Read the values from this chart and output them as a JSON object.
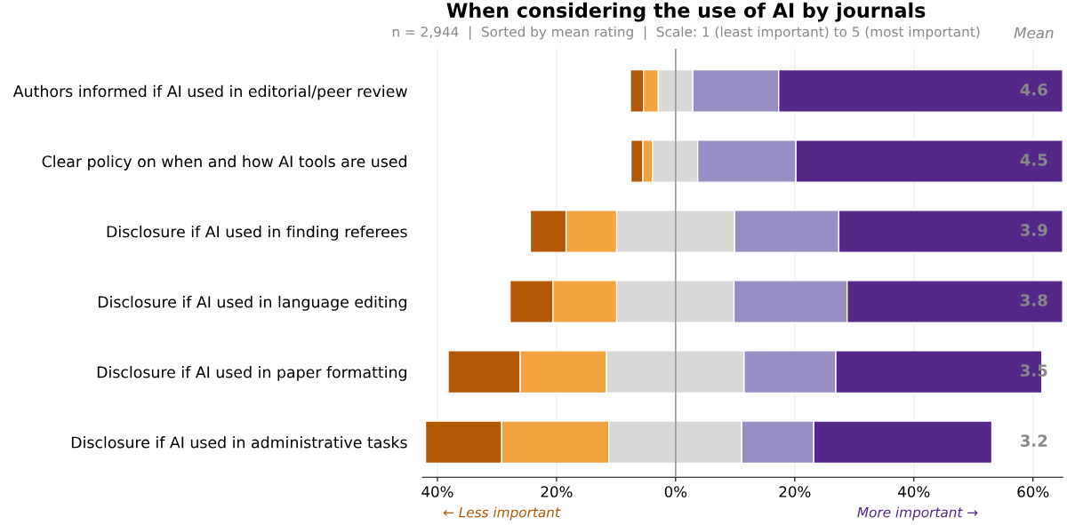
{
  "chart_data": {
    "type": "bar",
    "orientation": "horizontal",
    "title": "When considering the use of AI by journals",
    "subtitle": "n = 2,944  |  Sorted by mean rating  |  Scale: 1 (least important) to 5 (most important)",
    "categories": [
      "Authors informed if AI used in editorial/peer review",
      "Clear policy on when and how AI tools are used",
      "Disclosure if AI used in finding referees",
      "Disclosure if AI used in language editing",
      "Disclosure if AI used in paper formatting",
      "Disclosure if AI used in administrative tasks"
    ],
    "series": [
      {
        "color": "#b35806",
        "base": [
          -7.6,
          -7.5,
          -24.4,
          -27.8,
          -38.2,
          -42.0
        ],
        "values": [
          2.2,
          2.0,
          6.0,
          7.2,
          12.1,
          12.8
        ]
      },
      {
        "color": "#f1a340",
        "base": [
          -5.4,
          -5.5,
          -18.4,
          -20.6,
          -26.1,
          -29.2
        ],
        "values": [
          2.5,
          1.6,
          8.5,
          10.7,
          14.5,
          18.0
        ]
      },
      {
        "color": "#d8d8d8",
        "base": [
          -2.9,
          -3.9,
          -9.9,
          -9.9,
          -11.6,
          -11.2
        ],
        "values": [
          5.8,
          7.6,
          19.8,
          19.7,
          23.1,
          22.3
        ]
      },
      {
        "color": "#998ec3",
        "base": [
          2.9,
          3.7,
          9.9,
          9.8,
          11.5,
          11.1
        ],
        "values": [
          14.4,
          16.5,
          17.5,
          19.0,
          15.4,
          12.1
        ]
      },
      {
        "color": "#542788",
        "base": [
          17.3,
          20.2,
          27.4,
          28.8,
          26.9,
          23.2
        ],
        "values": [
          47.7,
          44.8,
          37.6,
          36.2,
          34.6,
          29.9
        ]
      }
    ],
    "xlim": [
      -42.5,
      65
    ],
    "xticks": [
      {
        "value": -40,
        "label": "40%"
      },
      {
        "value": -20,
        "label": "20%"
      },
      {
        "value": 0,
        "label": "0%"
      },
      {
        "value": 20,
        "label": "20%"
      },
      {
        "value": 40,
        "label": "40%"
      },
      {
        "value": 60,
        "label": "60%"
      }
    ],
    "grid": "x",
    "ref_lines": [
      {
        "axis": "x",
        "value": 0,
        "color": "#999999"
      }
    ],
    "annotations": [
      "Mean",
      "← Less important",
      "More important →",
      "4.6",
      "4.5",
      "3.9",
      "3.8",
      "3.5",
      "3.2"
    ]
  }
}
